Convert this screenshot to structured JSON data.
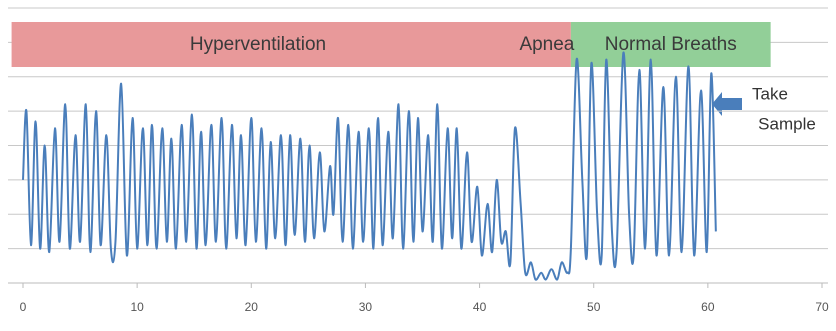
{
  "chart_data": {
    "type": "line",
    "x": [
      0,
      0.3,
      0.7,
      1.1,
      1.5,
      1.9,
      2.3,
      2.8,
      3.2,
      3.7,
      4.1,
      4.6,
      5.0,
      5.5,
      5.9,
      6.4,
      6.8,
      7.3,
      7.7,
      8.1,
      8.6,
      9.1,
      9.6,
      10.0,
      10.5,
      10.9,
      11.3,
      11.7,
      12.2,
      12.6,
      13.0,
      13.4,
      13.9,
      14.3,
      14.8,
      15.2,
      15.6,
      16.0,
      16.5,
      16.9,
      17.4,
      17.8,
      18.3,
      18.7,
      19.1,
      19.5,
      20.0,
      20.4,
      20.9,
      21.3,
      21.7,
      22.1,
      22.6,
      23.0,
      23.4,
      23.8,
      24.3,
      24.7,
      25.1,
      25.5,
      26.0,
      26.4,
      26.9,
      27.2,
      27.6,
      28.0,
      28.5,
      28.9,
      29.4,
      29.8,
      30.3,
      30.7,
      31.1,
      31.5,
      32.0,
      32.4,
      32.9,
      33.3,
      33.8,
      34.2,
      34.6,
      35.0,
      35.5,
      35.9,
      36.3,
      36.7,
      37.2,
      37.6,
      38.0,
      38.4,
      38.9,
      39.3,
      39.8,
      40.2,
      40.7,
      41.1,
      41.5,
      41.9,
      42.3,
      42.7,
      43.1,
      43.6,
      44.0,
      44.5,
      44.9,
      45.4,
      45.8,
      46.3,
      46.8,
      47.2,
      47.7,
      48.0,
      48.5,
      49.0,
      49.4,
      49.8,
      50.3,
      50.7,
      51.1,
      51.6,
      52.0,
      52.6,
      53.1,
      53.5,
      54.0,
      54.5,
      55.0,
      55.5,
      56.1,
      56.6,
      57.2,
      57.7,
      58.3,
      58.8,
      59.4,
      59.9,
      60.3,
      60.7
    ],
    "series": [
      {
        "color": "#4a7ebb",
        "values": [
          3.0,
          5.0,
          1.1,
          4.7,
          1.0,
          4.0,
          0.9,
          4.5,
          1.2,
          5.2,
          1.0,
          4.3,
          1.2,
          5.2,
          0.9,
          5.0,
          1.1,
          4.3,
          1.0,
          1.2,
          5.8,
          0.8,
          4.8,
          1.0,
          4.5,
          1.1,
          4.6,
          1.0,
          4.5,
          1.2,
          4.2,
          1.0,
          4.6,
          1.2,
          4.9,
          1.0,
          4.4,
          1.1,
          4.6,
          1.2,
          4.8,
          1.0,
          4.6,
          1.3,
          4.3,
          1.1,
          4.8,
          1.2,
          4.5,
          1.0,
          4.1,
          1.3,
          4.3,
          1.1,
          4.3,
          1.4,
          4.2,
          1.2,
          4.0,
          1.3,
          3.8,
          1.5,
          3.4,
          2.0,
          4.8,
          1.2,
          4.6,
          1.0,
          4.4,
          1.2,
          4.5,
          1.0,
          4.8,
          1.1,
          4.4,
          1.3,
          5.2,
          1.0,
          5.0,
          1.2,
          4.8,
          1.5,
          4.3,
          1.2,
          5.2,
          1.0,
          4.5,
          1.3,
          4.5,
          1.0,
          3.8,
          1.2,
          2.8,
          0.8,
          2.3,
          0.9,
          3.0,
          1.2,
          1.5,
          0.6,
          4.5,
          2.3,
          0.3,
          0.6,
          0.1,
          0.3,
          0.1,
          0.4,
          0.1,
          0.6,
          0.3,
          1.0,
          6.5,
          3.0,
          0.8,
          6.4,
          2.0,
          0.8,
          6.5,
          1.5,
          0.9,
          6.7,
          2.0,
          0.8,
          6.2,
          1.0,
          6.5,
          0.8,
          5.7,
          0.8,
          6.0,
          0.9,
          6.3,
          0.8,
          5.6,
          0.9,
          6.1,
          1.5
        ]
      }
    ],
    "xlim": [
      0,
      70
    ],
    "xticks": [
      0,
      10,
      20,
      30,
      40,
      50,
      60,
      70
    ],
    "ylim": [
      0,
      8
    ],
    "ygrid": [
      1,
      2,
      3,
      4,
      5,
      6,
      7,
      8
    ],
    "regions": [
      {
        "label": "Hyperventilation",
        "start": -1,
        "end": 48,
        "color": "#e8999a"
      },
      {
        "label": "Normal Breaths",
        "start": 48,
        "end": 65.5,
        "color": "#92cf98"
      }
    ],
    "annotations": [
      {
        "text": "Apnea",
        "x": 45.9
      },
      {
        "text": [
          "Take",
          "Sample"
        ],
        "x": 60.5
      }
    ]
  }
}
